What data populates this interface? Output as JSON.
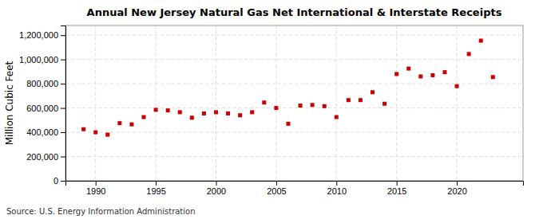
{
  "chart_data": {
    "type": "scatter",
    "title": "Annual New Jersey Natural Gas Net International & Interstate Receipts",
    "ylabel": "Million Cubic Feet",
    "annotations": [
      "Source: U.S. Energy Information Administration"
    ],
    "x": [
      1989,
      1990,
      1991,
      1992,
      1993,
      1994,
      1995,
      1996,
      1997,
      1998,
      1999,
      2000,
      2001,
      2002,
      2003,
      2004,
      2005,
      2006,
      2007,
      2008,
      2009,
      2010,
      2011,
      2012,
      2013,
      2014,
      2015,
      2016,
      2017,
      2018,
      2019,
      2020,
      2021,
      2022,
      2023
    ],
    "values": [
      425000,
      400000,
      380000,
      475000,
      465000,
      525000,
      585000,
      580000,
      565000,
      520000,
      555000,
      565000,
      555000,
      540000,
      565000,
      645000,
      600000,
      470000,
      620000,
      625000,
      615000,
      525000,
      665000,
      665000,
      730000,
      635000,
      880000,
      925000,
      860000,
      870000,
      895000,
      780000,
      1045000,
      1155000,
      855000
    ],
    "color": "#cc0000",
    "marker": "square",
    "xlim": [
      1987.5,
      2025.5
    ],
    "ylim": [
      0,
      1280000
    ],
    "xticks": [
      1990,
      1995,
      2000,
      2005,
      2010,
      2015,
      2020
    ],
    "yticks": [
      0,
      {
        "value": 200000,
        "label": "200,000"
      },
      {
        "value": 400000,
        "label": "400,000"
      },
      {
        "value": 600000,
        "label": "600,000"
      },
      {
        "value": 800000,
        "label": "800,000"
      },
      {
        "value": 1000000,
        "label": "1,000,000"
      },
      {
        "value": 1200000,
        "label": "1,200,000"
      }
    ],
    "grid": true
  }
}
